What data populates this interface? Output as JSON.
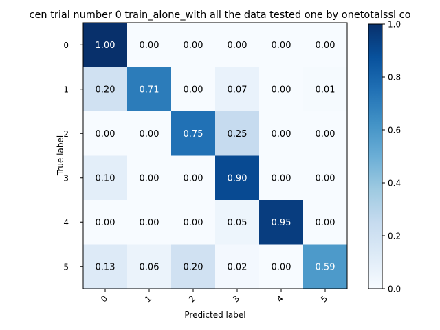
{
  "chart_data": {
    "type": "heatmap",
    "title": "cen trial number 0  train_alone_with all the data tested one by onetotalssl co",
    "xlabel": "Predicted label",
    "ylabel": "True label",
    "x_categories": [
      "0",
      "1",
      "2",
      "3",
      "4",
      "5"
    ],
    "y_categories": [
      "0",
      "1",
      "2",
      "3",
      "4",
      "5"
    ],
    "values": [
      [
        1.0,
        0.0,
        0.0,
        0.0,
        0.0,
        0.0
      ],
      [
        0.2,
        0.71,
        0.0,
        0.07,
        0.0,
        0.01
      ],
      [
        0.0,
        0.0,
        0.75,
        0.25,
        0.0,
        0.0
      ],
      [
        0.1,
        0.0,
        0.0,
        0.9,
        0.0,
        0.0
      ],
      [
        0.0,
        0.0,
        0.0,
        0.05,
        0.95,
        0.0
      ],
      [
        0.13,
        0.06,
        0.2,
        0.02,
        0.0,
        0.59
      ]
    ],
    "value_format": "0.00",
    "colorscale": "Blues",
    "colorscale_stops": [
      "#f7fbff",
      "#deebf7",
      "#c6dbef",
      "#9ecae1",
      "#6baed6",
      "#4292c6",
      "#2171b5",
      "#08519c",
      "#08306b"
    ],
    "colorbar": {
      "range": [
        0.0,
        1.0
      ],
      "ticks": [
        "0.0",
        "0.2",
        "0.4",
        "0.6",
        "0.8",
        "1.0"
      ]
    },
    "text_color_light": "#ffffff",
    "text_color_dark": "#000000"
  }
}
